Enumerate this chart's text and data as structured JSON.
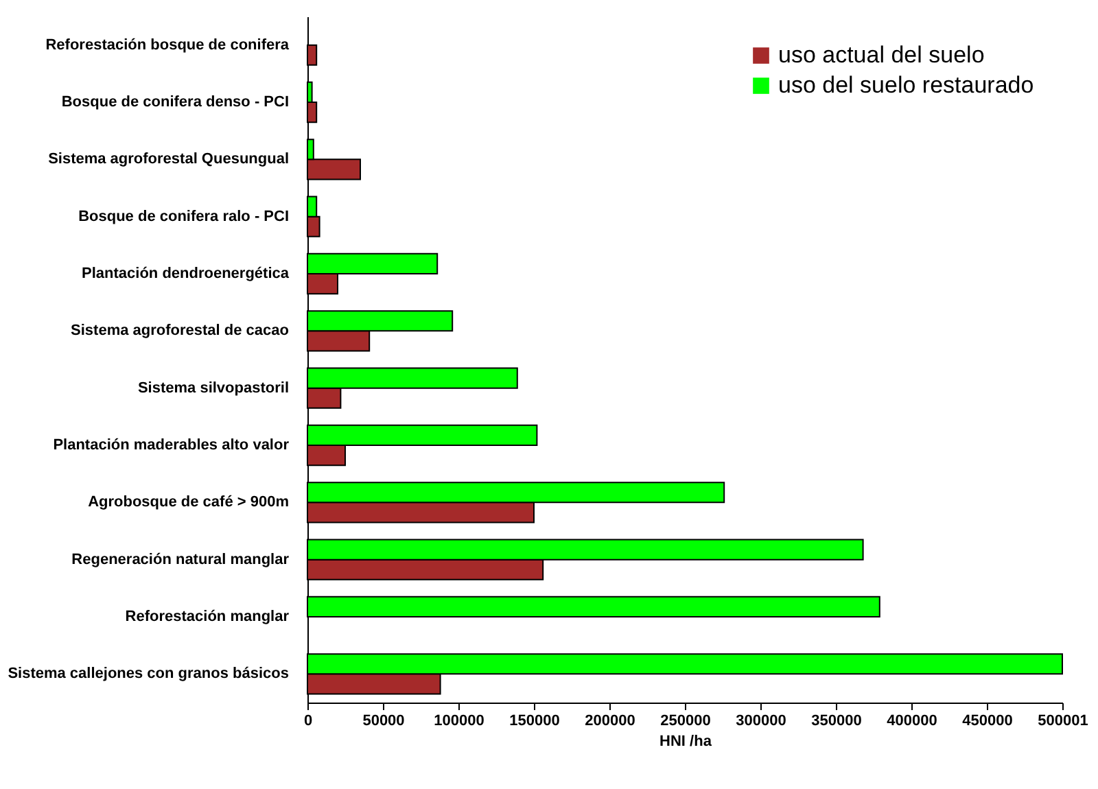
{
  "chart_data": {
    "type": "bar",
    "orientation": "horizontal",
    "xlabel": "HNI /ha",
    "categories": [
      "Reforestación bosque de conifera",
      "Bosque de conifera denso - PCI",
      "Sistema agroforestal Quesungual",
      "Bosque de conifera ralo - PCI",
      "Plantación dendroenergética",
      "Sistema agroforestal de cacao",
      "Sistema silvopastoril",
      "Plantación maderables alto valor",
      "Agrobosque de café > 900m",
      "Regeneración natural manglar",
      "Reforestación manglar",
      "Sistema callejones con granos básicos"
    ],
    "series": [
      {
        "name": "uso actual del suelo",
        "color": "#a52a2a",
        "values": [
          6000,
          6000,
          35000,
          8000,
          20000,
          41000,
          22000,
          25000,
          150000,
          156000,
          null,
          88000
        ]
      },
      {
        "name": "uso del suelo restaurado",
        "color": "#00ff00",
        "values": [
          null,
          3000,
          4000,
          6000,
          86000,
          96000,
          139000,
          152000,
          276000,
          368000,
          379000,
          500000
        ]
      }
    ],
    "xlim": [
      0,
      500001
    ],
    "xticks": [
      0,
      50000,
      100000,
      150000,
      200000,
      250000,
      300000,
      350000,
      400000,
      450000,
      500001
    ],
    "grid": false,
    "legend": "top right"
  }
}
